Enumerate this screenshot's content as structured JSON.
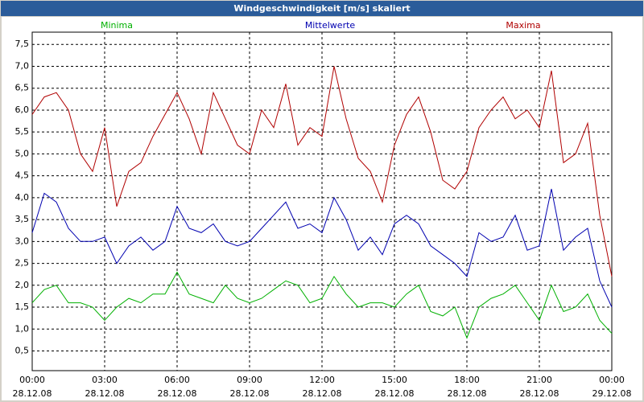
{
  "chart_data": {
    "type": "line",
    "title": "Windgeschwindigkeit [m/s] skaliert",
    "x": [
      0,
      0.5,
      1,
      1.5,
      2,
      2.5,
      3,
      3.5,
      4,
      4.5,
      5,
      5.5,
      6,
      6.5,
      7,
      7.5,
      8,
      8.5,
      9,
      9.5,
      10,
      10.5,
      11,
      11.5,
      12,
      12.5,
      13,
      13.5,
      14,
      14.5,
      15,
      15.5,
      16,
      16.5,
      17,
      17.5,
      18,
      18.5,
      19,
      19.5,
      20,
      20.5,
      21,
      21.5,
      22,
      22.5,
      23,
      23.5,
      24
    ],
    "series": [
      {
        "name": "Minima",
        "color": "#00b000",
        "values": [
          1.6,
          1.9,
          2.0,
          1.6,
          1.6,
          1.5,
          1.2,
          1.5,
          1.7,
          1.6,
          1.8,
          1.8,
          2.3,
          1.8,
          1.7,
          1.6,
          2.0,
          1.7,
          1.6,
          1.7,
          1.9,
          2.1,
          2.0,
          1.6,
          1.7,
          2.2,
          1.8,
          1.5,
          1.6,
          1.6,
          1.5,
          1.8,
          2.0,
          1.4,
          1.3,
          1.5,
          0.8,
          1.5,
          1.7,
          1.8,
          2.0,
          1.6,
          1.2,
          2.0,
          1.4,
          1.5,
          1.8,
          1.2,
          0.9
        ]
      },
      {
        "name": "Mittelwerte",
        "color": "#0000b0",
        "values": [
          3.2,
          4.1,
          3.9,
          3.3,
          3.0,
          3.0,
          3.1,
          2.5,
          2.9,
          3.1,
          2.8,
          3.0,
          3.8,
          3.3,
          3.2,
          3.4,
          3.0,
          2.9,
          3.0,
          3.3,
          3.6,
          3.9,
          3.3,
          3.4,
          3.2,
          4.0,
          3.5,
          2.8,
          3.1,
          2.7,
          3.4,
          3.6,
          3.4,
          2.9,
          2.7,
          2.5,
          2.2,
          3.2,
          3.0,
          3.1,
          3.6,
          2.8,
          2.9,
          4.2,
          2.8,
          3.1,
          3.3,
          2.1,
          1.5
        ]
      },
      {
        "name": "Maxima",
        "color": "#b00000",
        "values": [
          5.9,
          6.3,
          6.4,
          6.0,
          5.0,
          4.6,
          5.6,
          3.8,
          4.6,
          4.8,
          5.4,
          5.9,
          6.4,
          5.8,
          5.0,
          6.4,
          5.8,
          5.2,
          5.0,
          6.0,
          5.6,
          6.6,
          5.2,
          5.6,
          5.4,
          7.0,
          5.8,
          4.9,
          4.6,
          3.9,
          5.2,
          5.9,
          6.3,
          5.5,
          4.4,
          4.2,
          4.6,
          5.6,
          6.0,
          6.3,
          5.8,
          6.0,
          5.6,
          6.9,
          4.8,
          5.0,
          5.7,
          3.6,
          2.2
        ]
      }
    ],
    "xlim": [
      0,
      24
    ],
    "xticks": [
      {
        "value": 0,
        "label": [
          "00:00",
          "28.12.08"
        ]
      },
      {
        "value": 3,
        "label": [
          "03:00",
          "28.12.08"
        ]
      },
      {
        "value": 6,
        "label": [
          "06:00",
          "28.12.08"
        ]
      },
      {
        "value": 9,
        "label": [
          "09:00",
          "28.12.08"
        ]
      },
      {
        "value": 12,
        "label": [
          "12:00",
          "28.12.08"
        ]
      },
      {
        "value": 15,
        "label": [
          "15:00",
          "28.12.08"
        ]
      },
      {
        "value": 18,
        "label": [
          "18:00",
          "28.12.08"
        ]
      },
      {
        "value": 21,
        "label": [
          "21:00",
          "28.12.08"
        ]
      },
      {
        "value": 24,
        "label": [
          "00:00",
          "29.12.08"
        ]
      }
    ],
    "ylim": [
      0.05,
      7.78
    ],
    "yticks": [
      {
        "value": 0.5,
        "label": "0,5"
      },
      {
        "value": 1,
        "label": "1,0"
      },
      {
        "value": 1.5,
        "label": "1,5"
      },
      {
        "value": 2,
        "label": "2,0"
      },
      {
        "value": 2.5,
        "label": "2,5"
      },
      {
        "value": 3,
        "label": "3,0"
      },
      {
        "value": 3.5,
        "label": "3,5"
      },
      {
        "value": 4,
        "label": "4,0"
      },
      {
        "value": 4.5,
        "label": "4,5"
      },
      {
        "value": 5,
        "label": "5,0"
      },
      {
        "value": 5.5,
        "label": "5,5"
      },
      {
        "value": 6,
        "label": "6,0"
      },
      {
        "value": 6.5,
        "label": "6,5"
      },
      {
        "value": 7,
        "label": "7,0"
      },
      {
        "value": 7.5,
        "label": "7,5"
      }
    ],
    "grid": true
  }
}
